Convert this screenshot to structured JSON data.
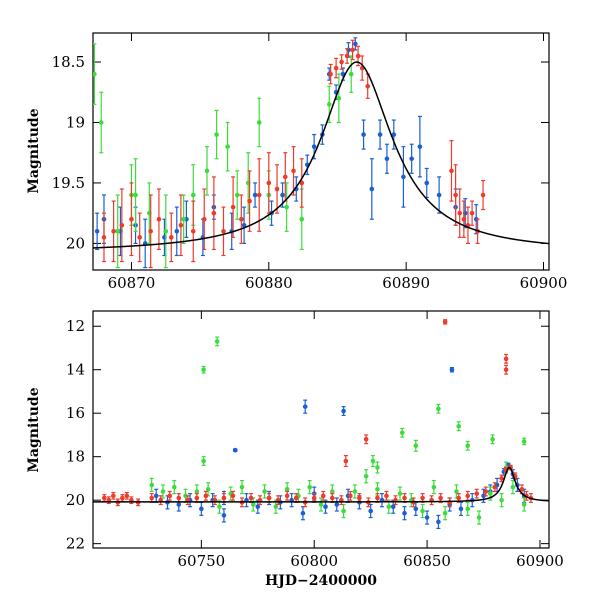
{
  "colors": {
    "blue": "#1a5fd6",
    "green": "#3ddc3d",
    "red": "#ee3b2b",
    "model": "#000000",
    "axes": "#000000"
  },
  "chart_data": [
    {
      "type": "scatter",
      "panel": "top",
      "ylabel": "Magnitude",
      "xlabel": "",
      "xlim": [
        60867.2,
        60900.4
      ],
      "ylim": [
        20.22,
        18.26
      ],
      "y_inverted": true,
      "x_ticks": [
        60870,
        60880,
        60890,
        60900
      ],
      "x_tick_labels": [
        "60870",
        "60880",
        "60890",
        "60900"
      ],
      "y_ticks": [
        18.5,
        19,
        19.5,
        20
      ],
      "y_tick_labels": [
        "18.5",
        "19",
        "19.5",
        "20"
      ],
      "grid": false,
      "model_curve": {
        "peak_x": 60886.4,
        "peak_mag": 18.5,
        "baseline_mag": 20.08,
        "width_days": 3.2,
        "line_style": "solid black"
      },
      "series": [
        {
          "color_key": "blue",
          "x": [
            60867.5,
            60868.0,
            60869.2,
            60870.3,
            60871.0,
            60872.4,
            60873.3,
            60874.0,
            60875.2,
            60876.0,
            60877.3,
            60878.2,
            60879.0,
            60880.2,
            60881.0,
            60882.0,
            60882.8,
            60883.3,
            60883.9,
            60884.4,
            60884.9,
            60885.4,
            60885.8,
            60886.3,
            60886.9,
            60887.5,
            60888.1,
            60888.6,
            60889.1,
            60889.8,
            60890.4,
            60891.0,
            60891.5,
            60892.4,
            60893.6,
            60894.3,
            60895.1
          ],
          "y": [
            19.9,
            19.8,
            19.9,
            19.85,
            20.0,
            19.95,
            19.9,
            19.8,
            19.95,
            19.7,
            19.9,
            19.85,
            19.6,
            19.75,
            19.6,
            19.55,
            19.35,
            19.2,
            19.1,
            18.6,
            18.75,
            18.6,
            18.4,
            18.35,
            19.1,
            19.55,
            19.1,
            19.3,
            19.1,
            19.45,
            19.3,
            19.2,
            19.5,
            19.6,
            19.7,
            19.75,
            19.8
          ],
          "err": [
            0.15,
            0.2,
            0.2,
            0.15,
            0.2,
            0.15,
            0.2,
            0.15,
            0.15,
            0.1,
            0.15,
            0.15,
            0.1,
            0.1,
            0.1,
            0.1,
            0.08,
            0.1,
            0.08,
            0.05,
            0.06,
            0.05,
            0.06,
            0.05,
            0.12,
            0.25,
            0.12,
            0.12,
            0.12,
            0.25,
            0.12,
            0.25,
            0.12,
            0.15,
            0.15,
            0.12,
            0.12
          ]
        },
        {
          "color_key": "green",
          "x": [
            60867.3,
            60867.8,
            60869.0,
            60870.0,
            60871.3,
            60872.5,
            60873.8,
            60874.5,
            60875.5,
            60876.2,
            60877.0,
            60877.7,
            60878.5,
            60879.3,
            60880.0,
            60881.3,
            60882.4,
            60884.4,
            60885.1,
            60886.0,
            60870.3
          ],
          "y": [
            18.6,
            19.0,
            19.9,
            19.6,
            19.75,
            19.9,
            19.8,
            19.6,
            19.4,
            19.1,
            19.2,
            19.6,
            19.5,
            19.0,
            19.6,
            19.7,
            19.8,
            18.85,
            18.8,
            18.6,
            19.6
          ],
          "err": [
            0.25,
            0.25,
            0.3,
            0.25,
            0.25,
            0.3,
            0.2,
            0.25,
            0.2,
            0.2,
            0.2,
            0.2,
            0.25,
            0.2,
            0.2,
            0.2,
            0.25,
            0.15,
            0.2,
            0.15,
            0.3
          ]
        },
        {
          "color_key": "red",
          "x": [
            60868.0,
            60868.7,
            60869.3,
            60870.0,
            60870.6,
            60871.4,
            60872.0,
            60872.9,
            60873.6,
            60874.5,
            60875.3,
            60876.0,
            60876.7,
            60877.4,
            60878.0,
            60878.6,
            60879.3,
            60880.0,
            60880.6,
            60881.2,
            60881.8,
            60882.4,
            60884.5,
            60884.9,
            60885.3,
            60885.7,
            60886.1,
            60886.5,
            60886.8,
            60887.2,
            60893.3,
            60893.6,
            60893.9,
            60894.2,
            60894.5,
            60894.8,
            60895.2,
            60895.6
          ],
          "y": [
            19.95,
            19.9,
            19.85,
            19.8,
            19.95,
            19.9,
            19.8,
            19.95,
            19.85,
            19.9,
            19.8,
            19.75,
            19.9,
            19.7,
            19.8,
            19.65,
            19.6,
            19.5,
            19.55,
            19.45,
            19.4,
            19.5,
            18.6,
            18.55,
            18.5,
            18.45,
            18.4,
            18.45,
            18.55,
            18.7,
            19.4,
            19.6,
            19.75,
            19.8,
            19.85,
            19.75,
            19.9,
            19.6
          ],
          "err": [
            0.2,
            0.25,
            0.3,
            0.3,
            0.2,
            0.3,
            0.25,
            0.2,
            0.25,
            0.25,
            0.25,
            0.3,
            0.2,
            0.25,
            0.2,
            0.25,
            0.3,
            0.25,
            0.2,
            0.2,
            0.2,
            0.2,
            0.08,
            0.08,
            0.06,
            0.06,
            0.08,
            0.08,
            0.1,
            0.1,
            0.25,
            0.25,
            0.2,
            0.15,
            0.15,
            0.1,
            0.1,
            0.12
          ]
        }
      ]
    },
    {
      "type": "scatter",
      "panel": "bottom",
      "ylabel": "Magnitude",
      "xlabel": "HJD−2400000",
      "xlim": [
        60702,
        60904
      ],
      "ylim": [
        22.2,
        11.3
      ],
      "y_inverted": true,
      "x_ticks": [
        60750,
        60800,
        60850,
        60900
      ],
      "x_tick_labels": [
        "60750",
        "60800",
        "60850",
        "60900"
      ],
      "y_ticks": [
        12,
        14,
        16,
        18,
        20,
        22
      ],
      "y_tick_labels": [
        "12",
        "14",
        "16",
        "18",
        "20",
        "22"
      ],
      "grid": false,
      "model_curve": {
        "peak_x": 60886.4,
        "peak_mag": 18.5,
        "baseline_mag": 20.08,
        "width_days": 3.2,
        "line_style": "solid black"
      },
      "series": [
        {
          "color_key": "blue",
          "x": [
            60730,
            60735,
            60740,
            60745,
            60750,
            60755,
            60760,
            60765,
            60770,
            60775,
            60780,
            60785,
            60790,
            60795,
            60800,
            60805,
            60810,
            60815,
            60820,
            60825,
            60830,
            60835,
            60840,
            60845,
            60850,
            60855,
            60860,
            60865,
            60870,
            60875,
            60878,
            60881,
            60884,
            60886,
            60888,
            60890,
            60893,
            60796,
            60813,
            60861,
            60765,
            60760
          ],
          "y": [
            19.8,
            20.1,
            20.2,
            20.0,
            20.4,
            20.0,
            19.9,
            17.7,
            20.0,
            20.3,
            19.9,
            20.1,
            20.0,
            20.6,
            19.7,
            20.3,
            20.2,
            19.8,
            20.1,
            20.5,
            20.0,
            20.3,
            20.6,
            20.4,
            20.8,
            21.0,
            20.2,
            20.4,
            20.0,
            19.8,
            19.6,
            19.3,
            18.7,
            18.4,
            18.8,
            19.3,
            19.8,
            15.7,
            15.9,
            14.0,
            17.7,
            20.7
          ],
          "err": [
            0.3,
            0.3,
            0.3,
            0.3,
            0.3,
            0.3,
            0.3,
            0.05,
            0.3,
            0.3,
            0.3,
            0.3,
            0.3,
            0.3,
            0.3,
            0.3,
            0.3,
            0.3,
            0.3,
            0.3,
            0.3,
            0.3,
            0.3,
            0.3,
            0.3,
            0.3,
            0.3,
            0.3,
            0.3,
            0.3,
            0.3,
            0.3,
            0.15,
            0.1,
            0.2,
            0.3,
            0.3,
            0.3,
            0.2,
            0.1,
            0.05,
            0.3
          ]
        },
        {
          "color_key": "green",
          "x": [
            60728,
            60733,
            60738,
            60743,
            60748,
            60753,
            60758,
            60763,
            60768,
            60773,
            60778,
            60783,
            60788,
            60793,
            60798,
            60803,
            60808,
            60813,
            60818,
            60823,
            60828,
            60833,
            60838,
            60843,
            60848,
            60853,
            60858,
            60863,
            60868,
            60873,
            60878,
            60883,
            60888,
            60893,
            60751,
            60751,
            60757,
            60828,
            60839,
            60855,
            60864,
            60868,
            60879,
            60893,
            60826,
            60845,
            60885
          ],
          "y": [
            19.3,
            19.6,
            19.4,
            19.8,
            19.6,
            19.5,
            20.3,
            19.7,
            19.4,
            20.2,
            19.6,
            20.3,
            19.5,
            19.8,
            19.4,
            20.2,
            19.6,
            20.5,
            19.6,
            18.9,
            19.5,
            20.3,
            19.7,
            20.0,
            20.5,
            19.4,
            20.6,
            19.6,
            20.4,
            20.8,
            19.7,
            20.0,
            19.4,
            20.2,
            18.2,
            14.0,
            12.7,
            18.5,
            16.9,
            15.8,
            16.6,
            17.5,
            17.2,
            17.3,
            18.2,
            17.5,
            18.5
          ],
          "err": [
            0.3,
            0.3,
            0.3,
            0.3,
            0.3,
            0.3,
            0.3,
            0.3,
            0.3,
            0.3,
            0.3,
            0.3,
            0.3,
            0.3,
            0.3,
            0.3,
            0.3,
            0.3,
            0.3,
            0.3,
            0.3,
            0.3,
            0.3,
            0.3,
            0.3,
            0.3,
            0.3,
            0.3,
            0.3,
            0.3,
            0.3,
            0.3,
            0.3,
            0.3,
            0.2,
            0.15,
            0.2,
            0.25,
            0.2,
            0.2,
            0.2,
            0.2,
            0.2,
            0.15,
            0.25,
            0.25,
            0.25
          ]
        },
        {
          "color_key": "red",
          "x": [
            60707,
            60709,
            60711,
            60713,
            60715,
            60717,
            60719,
            60722,
            60728,
            60732,
            60736,
            60740,
            60744,
            60748,
            60752,
            60756,
            60760,
            60764,
            60768,
            60772,
            60776,
            60780,
            60784,
            60788,
            60792,
            60796,
            60800,
            60804,
            60808,
            60812,
            60816,
            60820,
            60824,
            60828,
            60832,
            60836,
            60840,
            60844,
            60848,
            60852,
            60856,
            60860,
            60864,
            60868,
            60872,
            60876,
            60880,
            60883,
            60885,
            60887,
            60889,
            60892,
            60894,
            60896,
            60858,
            60885,
            60885,
            60823,
            60814
          ],
          "y": [
            19.9,
            20.0,
            19.8,
            20.1,
            19.9,
            19.8,
            20.0,
            20.1,
            19.9,
            20.0,
            19.8,
            19.9,
            20.0,
            19.9,
            19.8,
            20.0,
            19.9,
            19.8,
            20.1,
            19.9,
            20.0,
            19.9,
            20.0,
            19.8,
            19.9,
            20.1,
            19.9,
            19.8,
            19.9,
            20.0,
            19.8,
            19.9,
            20.1,
            19.9,
            19.8,
            20.0,
            19.9,
            20.1,
            19.9,
            20.0,
            19.9,
            20.1,
            19.9,
            19.8,
            19.7,
            19.6,
            19.4,
            19.0,
            18.6,
            18.5,
            18.9,
            19.5,
            19.8,
            19.9,
            11.8,
            13.5,
            14.0,
            17.2,
            18.2
          ],
          "err": [
            0.15,
            0.15,
            0.15,
            0.15,
            0.15,
            0.15,
            0.15,
            0.15,
            0.2,
            0.2,
            0.2,
            0.2,
            0.2,
            0.2,
            0.2,
            0.2,
            0.2,
            0.2,
            0.2,
            0.2,
            0.2,
            0.2,
            0.2,
            0.2,
            0.2,
            0.2,
            0.2,
            0.2,
            0.2,
            0.2,
            0.2,
            0.2,
            0.2,
            0.2,
            0.2,
            0.2,
            0.2,
            0.2,
            0.2,
            0.2,
            0.2,
            0.2,
            0.2,
            0.2,
            0.2,
            0.2,
            0.2,
            0.15,
            0.1,
            0.1,
            0.15,
            0.2,
            0.2,
            0.2,
            0.1,
            0.2,
            0.2,
            0.2,
            0.25
          ]
        }
      ]
    }
  ]
}
